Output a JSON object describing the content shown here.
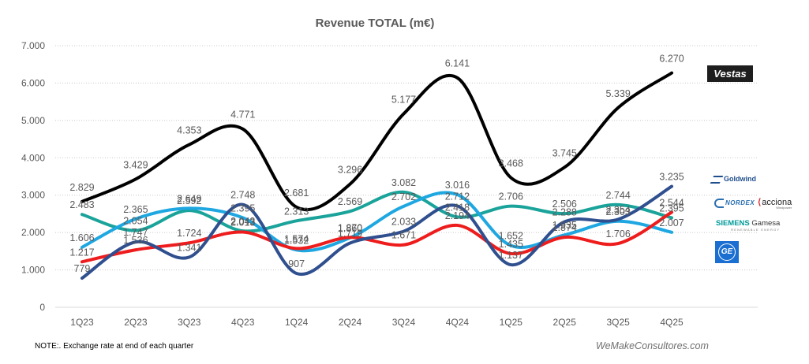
{
  "chart_data": {
    "type": "line",
    "title": "Revenue TOTAL (m€)",
    "xlabel": "",
    "ylabel": "",
    "ylim": [
      0,
      7000
    ],
    "yticks": [
      0,
      1000,
      2000,
      3000,
      4000,
      5000,
      6000,
      7000
    ],
    "ytick_labels": [
      "0",
      "1.000",
      "2.000",
      "3.000",
      "4.000",
      "5.000",
      "6.000",
      "7.000"
    ],
    "grid": true,
    "legend": "logos at right end of lines",
    "categories": [
      "1Q23",
      "2Q23",
      "3Q23",
      "4Q23",
      "1Q24",
      "2Q24",
      "3Q24",
      "4Q24",
      "1Q25",
      "2Q25",
      "3Q25",
      "4Q25"
    ],
    "series": [
      {
        "name": "Vestas",
        "color": "#000000",
        "values": [
          2829,
          3429,
          4353,
          4771,
          2681,
          3296,
          5177,
          6141,
          3468,
          3745,
          5339,
          6270
        ]
      },
      {
        "name": "Goldwind",
        "color": "#2f4f8f",
        "values": [
          779,
          1747,
          1341,
          2748,
          907,
          1719,
          2033,
          2712,
          1137,
          2288,
          2354,
          3235
        ]
      },
      {
        "name": "Nordex / Acciona",
        "color": "#ee1c1c",
        "values": [
          1217,
          1536,
          1724,
          2013,
          1574,
          1870,
          1671,
          2194,
          1435,
          1874,
          1706,
          2544
        ]
      },
      {
        "name": "Siemens Gamesa",
        "color": "#1aa39a",
        "values": [
          2483,
          2054,
          2592,
          2043,
          2313,
          2569,
          3082,
          2418,
          2706,
          2506,
          2744,
          2395
        ]
      },
      {
        "name": "GE",
        "color": "#1ea7e1",
        "values": [
          1606,
          2365,
          2649,
          2395,
          1532,
          1860,
          2702,
          3016,
          1652,
          1935,
          2303,
          2007
        ]
      }
    ],
    "number_format": "thousands separator '.'"
  },
  "logos": {
    "vestas": "Vestas",
    "goldwind": "Goldwind",
    "nordex": "NORDEX",
    "acciona": "acciona",
    "acciona_sub": "Windpower",
    "siemens": "SIEMENS",
    "gamesa": "Gamesa",
    "sg_sub": "RENEWABLE ENERGY",
    "ge": "GE"
  },
  "footer": {
    "note": "NOTE:. Exchange rate at end of each quarter",
    "credit": "WeMakeConsultores.com"
  }
}
